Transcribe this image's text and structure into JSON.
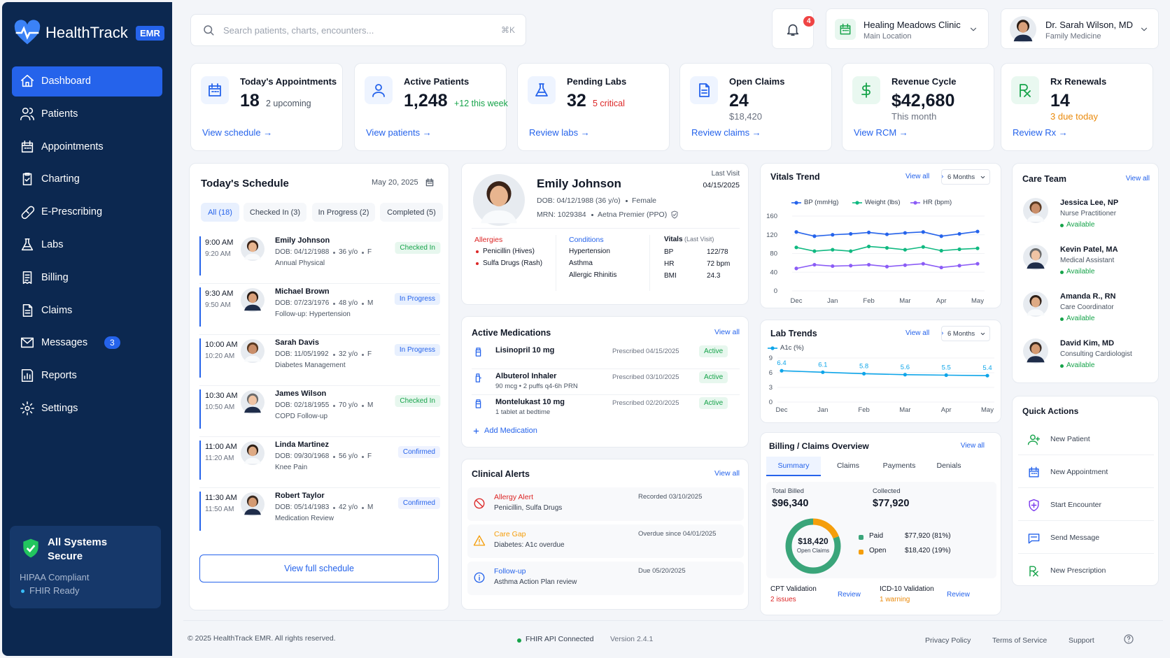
{
  "sidebar": {
    "brand": "HealthTrack",
    "badge": "EMR",
    "nav": [
      "Dashboard",
      "Patients",
      "Appointments",
      "Charting",
      "E-Prescribing",
      "Labs",
      "Billing",
      "Claims",
      "Messages",
      "Reports",
      "Settings"
    ],
    "messages_badge": "3",
    "security": {
      "title": "All Systems Secure",
      "lines": [
        "HIPAA Compliant",
        "FHIR Ready"
      ]
    }
  },
  "header": {
    "search_placeholder": "Search patients, charts, encounters...",
    "shortcut": "⌘K",
    "notifications": "4",
    "clinic": {
      "name": "Healing Meadows Clinic",
      "location": "Main Location"
    },
    "user": {
      "name": "Dr. Sarah Wilson, MD",
      "role": "Family Medicine"
    }
  },
  "kpis": [
    {
      "title": "Today's Appointments",
      "value": "18",
      "note": "2 upcoming",
      "link": "View schedule →"
    },
    {
      "title": "Active Patients",
      "value": "1,248",
      "note": "+12 this week",
      "link": "View patients →"
    },
    {
      "title": "Pending Labs",
      "value": "32",
      "note": "5 critical",
      "link": "Review labs →"
    },
    {
      "title": "Open Claims",
      "value": "24",
      "note": "$18,420",
      "link": "Review claims →"
    },
    {
      "title": "Revenue Cycle",
      "value": "$42,680",
      "note": "This month",
      "link": "View RCM →"
    },
    {
      "title": "Rx Renewals",
      "value": "14",
      "note": "3 due today",
      "link": "Review Rx →"
    }
  ],
  "schedule": {
    "title": "Today's Schedule",
    "date": "May 20, 2025",
    "tabs": [
      "All (18)",
      "Checked In (3)",
      "In Progress (2)",
      "Completed (5)"
    ],
    "items": [
      {
        "start": "9:00 AM",
        "end": "9:20 AM",
        "name": "Emily Johnson",
        "dob": "DOB: 04/12/1988",
        "age": "36 y/o",
        "sex": "F",
        "reason": "Annual Physical",
        "status": "Checked In"
      },
      {
        "start": "9:30 AM",
        "end": "9:50 AM",
        "name": "Michael Brown",
        "dob": "DOB: 07/23/1976",
        "age": "48 y/o",
        "sex": "M",
        "reason": "Follow-up: Hypertension",
        "status": "In Progress"
      },
      {
        "start": "10:00 AM",
        "end": "10:20 AM",
        "name": "Sarah Davis",
        "dob": "DOB: 11/05/1992",
        "age": "32 y/o",
        "sex": "F",
        "reason": "Diabetes Management",
        "status": "In Progress"
      },
      {
        "start": "10:30 AM",
        "end": "10:50 AM",
        "name": "James Wilson",
        "dob": "DOB: 02/18/1955",
        "age": "70 y/o",
        "sex": "M",
        "reason": "COPD Follow-up",
        "status": "Checked In"
      },
      {
        "start": "11:00 AM",
        "end": "11:20 AM",
        "name": "Linda Martinez",
        "dob": "DOB: 09/30/1968",
        "age": "56 y/o",
        "sex": "F",
        "reason": "Knee Pain",
        "status": "Confirmed"
      },
      {
        "start": "11:30 AM",
        "end": "11:50 AM",
        "name": "Robert Taylor",
        "dob": "DOB: 05/14/1983",
        "age": "42 y/o",
        "sex": "M",
        "reason": "Medication Review",
        "status": "Confirmed"
      }
    ],
    "button": "View full schedule"
  },
  "patient": {
    "name": "Emily Johnson",
    "dob": "DOB: 04/12/1988 (36 y/o)",
    "sex": "Female",
    "mrn": "MRN: 1029384",
    "insurance": "Aetna Premier (PPO)",
    "last_visit_label": "Last Visit",
    "last_visit": "04/15/2025",
    "allergies": {
      "title": "Allergies",
      "items": [
        "Penicillin (Hives)",
        "Sulfa Drugs (Rash)"
      ]
    },
    "conditions": {
      "title": "Conditions",
      "items": [
        "Hypertension",
        "Asthma",
        "Allergic Rhinitis"
      ]
    },
    "vitals": {
      "title": "Vitals",
      "subtitle": "(Last Visit)",
      "rows": [
        [
          "BP",
          "122/78"
        ],
        [
          "HR",
          "72 bpm"
        ],
        [
          "BMI",
          "24.3"
        ]
      ]
    }
  },
  "medications": {
    "title": "Active Medications",
    "link": "View all",
    "items": [
      {
        "name": "Lisinopril 10 mg",
        "prescribed": "Prescribed 04/15/2025",
        "status": "Active"
      },
      {
        "name": "Albuterol Inhaler",
        "detail": "90 mcg • 2 puffs q4-6h PRN",
        "prescribed": "Prescribed 03/10/2025",
        "status": "Active"
      },
      {
        "name": "Montelukast 10 mg",
        "detail": "1 tablet at bedtime",
        "prescribed": "Prescribed 02/20/2025",
        "status": "Active"
      }
    ],
    "add": "Add Medication"
  },
  "alerts": {
    "title": "Clinical Alerts",
    "link": "View all",
    "items": [
      {
        "title": "Allergy Alert",
        "detail": "Penicillin, Sulfa Drugs",
        "date": "Recorded 03/10/2025"
      },
      {
        "title": "Care Gap",
        "detail": "Diabetes: A1c overdue",
        "date": "Overdue since 04/01/2025"
      },
      {
        "title": "Follow-up",
        "detail": "Asthma Action Plan review",
        "date": "Due 05/20/2025"
      }
    ]
  },
  "vitals_trend": {
    "title": "Vitals Trend",
    "link": "View all",
    "range": "6 Months",
    "chart": {
      "type": "line",
      "categories": [
        "Dec",
        null,
        "Jan",
        null,
        "Feb",
        null,
        "Mar",
        null,
        "Apr",
        null,
        "May"
      ],
      "series": [
        {
          "name": "BP (mmHg)",
          "color": "#2563eb",
          "values": [
            126,
            117,
            120,
            122,
            125,
            121,
            124,
            126,
            117,
            122,
            127
          ]
        },
        {
          "name": "Weight (lbs)",
          "color": "#10b981",
          "values": [
            93,
            85,
            88,
            85,
            95,
            92,
            88,
            94,
            86,
            89,
            91
          ]
        },
        {
          "name": "HR (bpm)",
          "color": "#8b5cf6",
          "values": [
            48,
            56,
            53,
            54,
            56,
            52,
            55,
            58,
            50,
            54,
            58
          ]
        }
      ],
      "ylim": [
        0,
        160
      ],
      "yticks": [
        0,
        40,
        80,
        120,
        160
      ],
      "grid": true
    }
  },
  "lab_trends": {
    "title": "Lab Trends",
    "link": "View all",
    "range": "6 Months",
    "chart": {
      "type": "line",
      "categories": [
        "Dec",
        "Jan",
        "Feb",
        "Mar",
        "Apr",
        "May"
      ],
      "series": [
        {
          "name": "A1c (%)",
          "color": "#0ea5e9",
          "values": [
            6.4,
            6.1,
            5.8,
            5.6,
            5.5,
            5.4
          ]
        }
      ],
      "ylim": [
        0,
        9
      ],
      "yticks": [
        0,
        3,
        6,
        9
      ],
      "grid": true
    }
  },
  "billing": {
    "title": "Billing / Claims Overview",
    "link": "View all",
    "tabs": [
      "Summary",
      "Claims",
      "Payments",
      "Denials"
    ],
    "total_label": "Total Billed",
    "total": "$96,340",
    "collected_label": "Collected",
    "collected": "$77,920",
    "donut": {
      "type": "pie",
      "center_value": "$18,420",
      "center_label": "Open Claims",
      "categories": [
        "Paid",
        "Open"
      ],
      "values": [
        77920,
        18420
      ],
      "value_labels": [
        "$77,920 (81%)",
        "$18,420 (19%)"
      ],
      "colors": [
        "#3aa57a",
        "#f59e0b"
      ]
    },
    "validations": [
      {
        "title": "CPT Validation",
        "status": "2 issues",
        "action": "Review"
      },
      {
        "title": "ICD-10 Validation",
        "status": "1 warning",
        "action": "Review"
      }
    ]
  },
  "care_team": {
    "title": "Care Team",
    "link": "View all",
    "members": [
      {
        "name": "Jessica Lee, NP",
        "role": "Nurse Practitioner",
        "status": "Available"
      },
      {
        "name": "Kevin Patel, MA",
        "role": "Medical Assistant",
        "status": "Available"
      },
      {
        "name": "Amanda R., RN",
        "role": "Care Coordinator",
        "status": "Available"
      },
      {
        "name": "David Kim, MD",
        "role": "Consulting Cardiologist",
        "status": "Available"
      }
    ]
  },
  "quick_actions": {
    "title": "Quick Actions",
    "items": [
      "New Patient",
      "New Appointment",
      "Start Encounter",
      "Send Message",
      "New Prescription"
    ]
  },
  "footer": {
    "copyright": "© 2025 HealthTrack EMR. All rights reserved.",
    "api": "FHIR API Connected",
    "version": "Version 2.4.1",
    "links": [
      "Privacy Policy",
      "Terms of Service",
      "Support"
    ]
  }
}
